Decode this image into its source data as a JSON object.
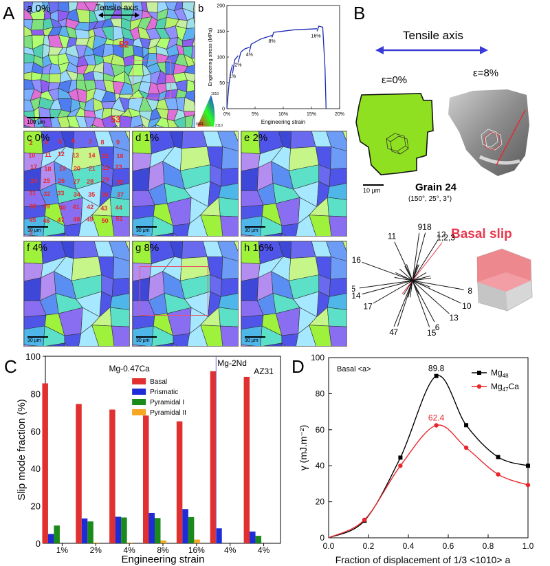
{
  "panels": {
    "A": "A",
    "B": "B",
    "C": "C",
    "D": "D"
  },
  "panelA": {
    "a": {
      "label": "a  0%",
      "tensile_axis": "Tensile axis",
      "grain_52": "52",
      "grain_53": "53",
      "scale": "100 μm",
      "key_0001": "0001",
      "key_2110": "2110",
      "key_1010": "1010"
    },
    "b": {
      "label": "b",
      "chart_data": {
        "type": "line",
        "title": "",
        "xlabel": "Engineering strain",
        "ylabel": "Engineering stress (MPa)",
        "xlim": [
          0,
          20
        ],
        "ylim": [
          0,
          200
        ],
        "xticks": [
          "0%",
          "5%",
          "10%",
          "15%",
          "20%"
        ],
        "yticks": [
          "0",
          "50",
          "100",
          "150",
          "200"
        ],
        "segments": [
          {
            "strain": [
              0,
              0.4,
              0.7,
              1.0
            ],
            "stress": [
              0,
              50,
              72,
              85
            ]
          },
          {
            "strain": [
              1.0,
              1.4,
              2.0
            ],
            "stress": [
              68,
              95,
              103
            ]
          },
          {
            "strain": [
              2.0,
              2.5,
              3.2,
              4.0
            ],
            "stress": [
              90,
              110,
              116,
              119
            ]
          },
          {
            "strain": [
              4.0,
              4.3,
              6.0,
              8.0
            ],
            "stress": [
              110,
              125,
              135,
              142
            ]
          },
          {
            "strain": [
              8.0,
              8.3,
              12.0,
              16.0
            ],
            "stress": [
              138,
              148,
              153,
              155
            ]
          },
          {
            "strain": [
              16.0,
              16.3,
              17.0,
              17.4,
              17.6
            ],
            "stress": [
              150,
              160,
              158,
              80,
              0
            ]
          }
        ],
        "annotations": [
          {
            "text": "1%",
            "strain": 1.0,
            "stress": 60
          },
          {
            "text": "2%",
            "strain": 2.0,
            "stress": 82
          },
          {
            "text": "4%",
            "strain": 4.0,
            "stress": 102
          },
          {
            "text": "8%",
            "strain": 8.0,
            "stress": 128
          },
          {
            "text": "16%",
            "strain": 15.8,
            "stress": 138
          }
        ]
      }
    },
    "maps": [
      {
        "label": "c  0%",
        "scale": "30 μm"
      },
      {
        "label": "d  1%",
        "scale": "30 μm"
      },
      {
        "label": "e  2%",
        "scale": "30 μm"
      },
      {
        "label": "f  4%",
        "scale": "30 μm"
      },
      {
        "label": "g  8%",
        "scale": "30 μm"
      },
      {
        "label": "h  16%",
        "scale": "30 μm"
      }
    ],
    "grain_numbers": [
      "2",
      "4",
      "5",
      "6",
      "7",
      "8",
      "9",
      "10",
      "11",
      "12",
      "13",
      "14",
      "15",
      "16",
      "17",
      "18",
      "19",
      "20",
      "21",
      "22",
      "23",
      "24",
      "25",
      "26",
      "27",
      "28",
      "29",
      "30",
      "31",
      "32",
      "33",
      "34",
      "35",
      "36",
      "37",
      "38",
      "39",
      "40",
      "41",
      "42",
      "43",
      "44",
      "45",
      "46",
      "47",
      "48",
      "49",
      "50",
      "51",
      "3"
    ]
  },
  "panelB": {
    "tensile_axis": "Tensile axis",
    "eps0": "ε=0%",
    "eps8": "ε=8%",
    "scale": "10 μm",
    "grain_title": "Grain 24",
    "grain_euler": "(150°, 25°, 3°)",
    "basal_slip": "Basal slip",
    "trace_labels": [
      "9",
      "18",
      "12",
      "1,2,3",
      "11",
      "16",
      "5",
      "8",
      "14",
      "10",
      "17",
      "13",
      "4",
      "7",
      "15",
      "6"
    ]
  },
  "panelC": {
    "chart_data": {
      "type": "bar",
      "title": "",
      "xlabel": "Engineering strain",
      "ylabel": "Slip mode fraction (%)",
      "ylim": [
        0,
        100
      ],
      "yticks": [
        "0",
        "20",
        "40",
        "60",
        "80",
        "100"
      ],
      "categories": [
        "1%",
        "2%",
        "4%",
        "8%",
        "16%",
        "4%",
        "4%"
      ],
      "group_labels": [
        "Mg-0.47Ca",
        "Mg-2Nd",
        "AZ31"
      ],
      "series": [
        {
          "name": "Basal",
          "color": "#e03030",
          "values": [
            85.5,
            74.5,
            71.5,
            68.3,
            65.2,
            92.0,
            89.0
          ]
        },
        {
          "name": "Prismatic",
          "color": "#1f2bd6",
          "values": [
            5.0,
            13.3,
            14.2,
            16.2,
            18.3,
            8.0,
            6.3
          ]
        },
        {
          "name": "Pyramidal I",
          "color": "#1a8a1a",
          "values": [
            9.5,
            11.7,
            13.8,
            13.5,
            14.0,
            0,
            4.0
          ]
        },
        {
          "name": "Pyramidal II",
          "color": "#f5a623",
          "values": [
            0,
            0.4,
            0.4,
            1.5,
            2.0,
            0,
            0
          ]
        }
      ]
    }
  },
  "panelD": {
    "chart_data": {
      "type": "line",
      "title": "Basal <a>",
      "xlabel": "Fraction of displacement of 1/3 <1010> a",
      "ylabel": "γ (mJ.m⁻²)",
      "xlim": [
        0.0,
        1.0
      ],
      "ylim": [
        0,
        100
      ],
      "xticks": [
        "0.0",
        "0.2",
        "0.4",
        "0.6",
        "0.8",
        "1.0"
      ],
      "yticks": [
        "0",
        "20",
        "40",
        "60",
        "80",
        "100"
      ],
      "series": [
        {
          "name": "Mg48",
          "name_main": "Mg",
          "name_sub": "48",
          "color": "#000000",
          "marker": "square",
          "x": [
            0.0,
            0.18,
            0.36,
            0.54,
            0.69,
            0.85,
            1.0
          ],
          "y": [
            0,
            9.5,
            44.5,
            89.8,
            62.5,
            44.8,
            40.0
          ]
        },
        {
          "name": "Mg47Ca",
          "name_main": "Mg",
          "name_sub": "47",
          "name_tail": "Ca",
          "color": "#e8272d",
          "marker": "circle",
          "x": [
            0.0,
            0.18,
            0.36,
            0.54,
            0.69,
            0.85,
            1.0
          ],
          "y": [
            0,
            10.0,
            40.0,
            62.4,
            50.0,
            35.2,
            29.3
          ]
        }
      ],
      "peak_labels": [
        {
          "text": "89.8",
          "x": 0.54,
          "y": 89.8,
          "color": "#000000"
        },
        {
          "text": "62.4",
          "x": 0.54,
          "y": 62.4,
          "color": "#e8272d"
        }
      ]
    }
  }
}
